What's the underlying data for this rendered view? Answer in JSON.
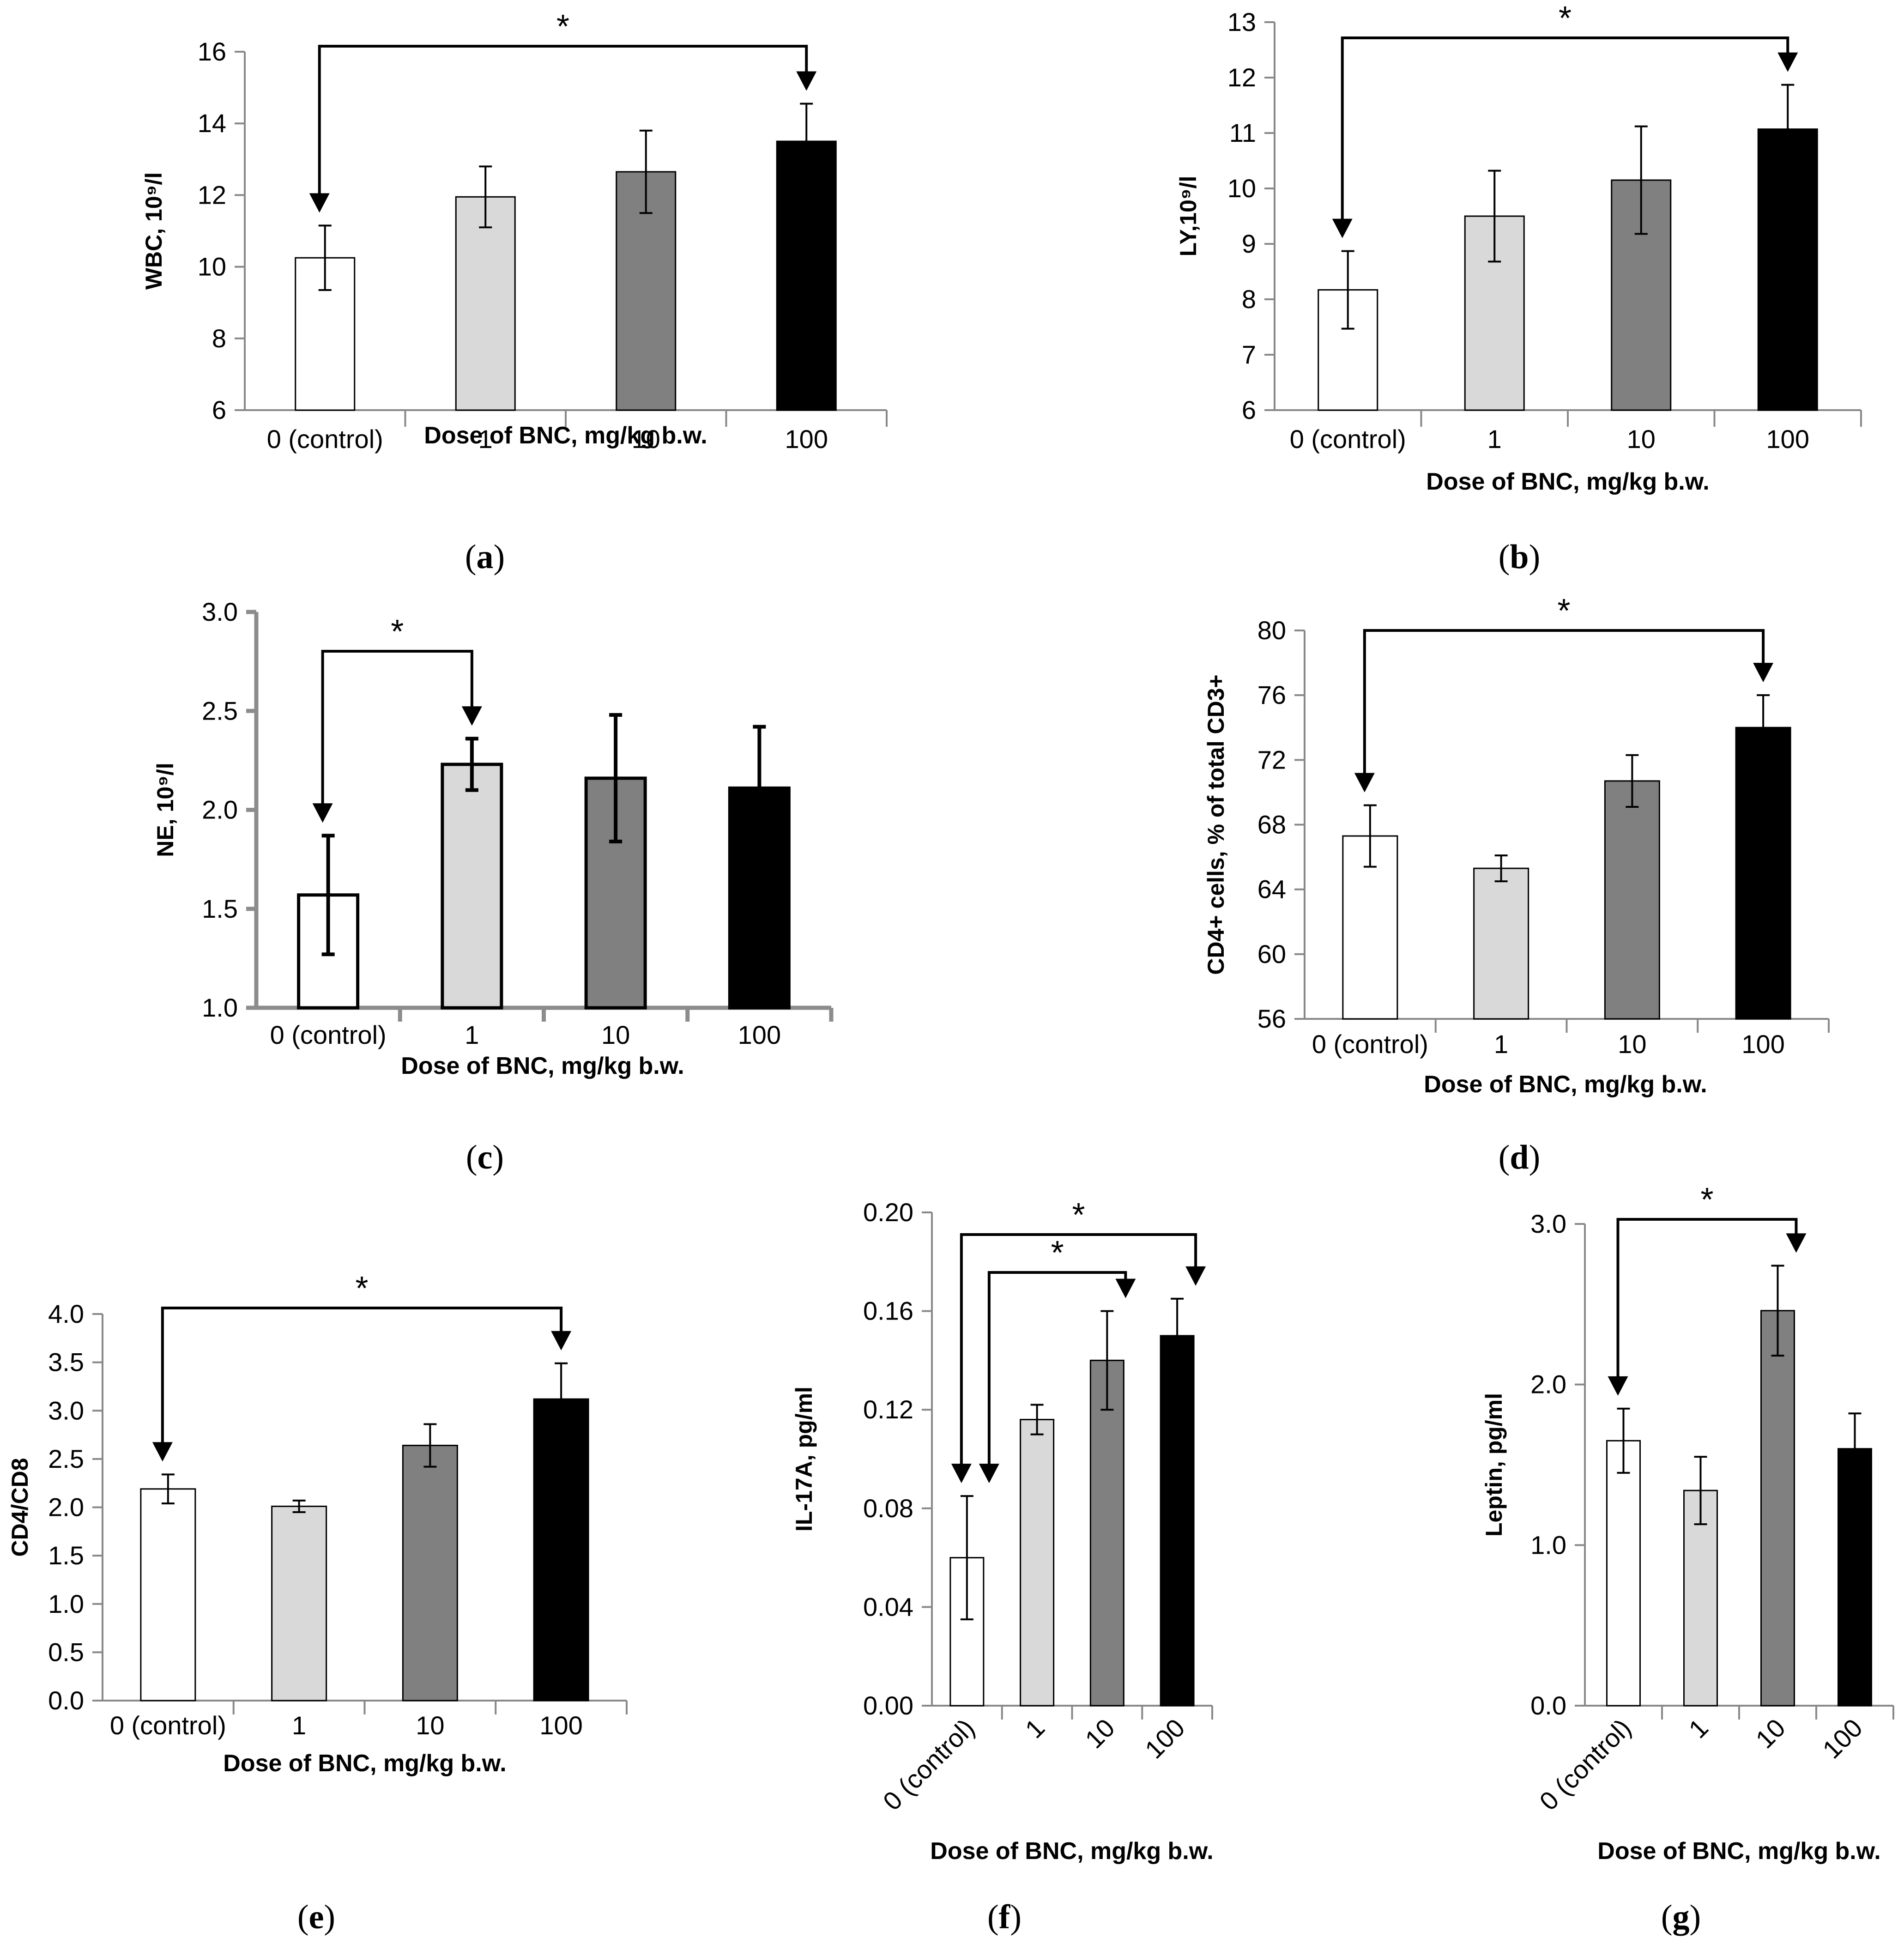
{
  "figure": {
    "xlabel": "Dose of BNC, mg/kg b.w.",
    "categories": [
      "0 (control)",
      "1",
      "10",
      "100"
    ],
    "colors": [
      "#ffffff",
      "#d9d9d9",
      "#808080",
      "#000000"
    ],
    "significance_mark": "*",
    "panel_labels": [
      {
        "open": "(",
        "letter": "a",
        "close": ")"
      },
      {
        "open": "(",
        "letter": "b",
        "close": ")"
      },
      {
        "open": "(",
        "letter": "c",
        "close": ")"
      },
      {
        "open": "(",
        "letter": "d",
        "close": ")"
      },
      {
        "open": "(",
        "letter": "e",
        "close": ")"
      },
      {
        "open": "(",
        "letter": "f",
        "close": ")"
      },
      {
        "open": "(",
        "letter": "g",
        "close": ")"
      }
    ]
  },
  "chart_data": [
    {
      "id": "a",
      "type": "bar",
      "ylabel": "WBC, 10⁹/l",
      "categories": [
        "0 (control)",
        "1",
        "10",
        "100"
      ],
      "values": [
        10.25,
        11.95,
        12.65,
        13.5
      ],
      "errors": [
        0.9,
        0.85,
        1.15,
        1.05
      ],
      "ylim": [
        6,
        16
      ],
      "yticks": [
        6,
        8,
        10,
        12,
        14,
        16
      ],
      "decimals": 0,
      "xlabel": "Dose of BNC, mg/kg b.w.",
      "significance": [
        {
          "from": 0,
          "to": 3,
          "label": "*"
        }
      ]
    },
    {
      "id": "b",
      "type": "bar",
      "ylabel": "LY,10⁹/l",
      "categories": [
        "0 (control)",
        "1",
        "10",
        "100"
      ],
      "values": [
        8.17,
        9.5,
        10.15,
        11.07
      ],
      "errors": [
        0.7,
        0.82,
        0.97,
        0.8
      ],
      "ylim": [
        6,
        13
      ],
      "yticks": [
        6,
        7,
        8,
        9,
        10,
        11,
        12,
        13
      ],
      "decimals": 0,
      "xlabel": "Dose of BNC, mg/kg b.w.",
      "significance": [
        {
          "from": 0,
          "to": 3,
          "label": "*"
        }
      ]
    },
    {
      "id": "c",
      "type": "bar",
      "ylabel": "NE, 10⁹/l",
      "categories": [
        "0 (control)",
        "1",
        "10",
        "100"
      ],
      "values": [
        1.57,
        2.23,
        2.16,
        2.11
      ],
      "errors": [
        0.3,
        0.13,
        0.32,
        0.31
      ],
      "ylim": [
        1.0,
        3.0
      ],
      "yticks": [
        1.0,
        1.5,
        2.0,
        2.5,
        3.0
      ],
      "decimals": 1,
      "xlabel": "Dose of BNC, mg/kg b.w.",
      "significance": [
        {
          "from": 0,
          "to": 1,
          "label": "*"
        }
      ]
    },
    {
      "id": "d",
      "type": "bar",
      "ylabel": "CD4+ cells, % of total CD3+",
      "categories": [
        "0 (control)",
        "1",
        "10",
        "100"
      ],
      "values": [
        67.3,
        65.3,
        70.7,
        74.0
      ],
      "errors": [
        1.9,
        0.8,
        1.6,
        2.0
      ],
      "ylim": [
        56,
        80
      ],
      "yticks": [
        56,
        60,
        64,
        68,
        72,
        76,
        80
      ],
      "decimals": 0,
      "xlabel": "Dose of BNC, mg/kg b.w.",
      "significance": [
        {
          "from": 0,
          "to": 3,
          "label": "*"
        }
      ]
    },
    {
      "id": "e",
      "type": "bar",
      "ylabel": "CD4/CD8",
      "categories": [
        "0 (control)",
        "1",
        "10",
        "100"
      ],
      "values": [
        2.19,
        2.01,
        2.64,
        3.12
      ],
      "errors": [
        0.15,
        0.06,
        0.22,
        0.37
      ],
      "ylim": [
        0.0,
        4.0
      ],
      "yticks": [
        0.0,
        0.5,
        1.0,
        1.5,
        2.0,
        2.5,
        3.0,
        3.5,
        4.0
      ],
      "decimals": 1,
      "xlabel": "Dose of BNC, mg/kg b.w.",
      "significance": [
        {
          "from": 0,
          "to": 3,
          "label": "*"
        }
      ]
    },
    {
      "id": "f",
      "type": "bar",
      "ylabel": "IL-17A, pg/ml",
      "categories": [
        "0 (control)",
        "1",
        "10",
        "100"
      ],
      "values": [
        0.06,
        0.116,
        0.14,
        0.15
      ],
      "errors": [
        0.025,
        0.006,
        0.02,
        0.015
      ],
      "ylim": [
        0.0,
        0.2
      ],
      "yticks": [
        0.0,
        0.04,
        0.08,
        0.12,
        0.16,
        0.2
      ],
      "decimals": 2,
      "xlabel": "Dose of BNC, mg/kg b.w.",
      "significance": [
        {
          "from": 0,
          "to": 3,
          "label": "*"
        },
        {
          "from": 0,
          "to": 2,
          "label": "*"
        }
      ]
    },
    {
      "id": "g",
      "type": "bar",
      "ylabel": "Leptin, pg/ml",
      "categories": [
        "0 (control)",
        "1",
        "10",
        "100"
      ],
      "values": [
        1.65,
        1.34,
        2.46,
        1.6
      ],
      "errors": [
        0.2,
        0.21,
        0.28,
        0.22
      ],
      "ylim": [
        0.0,
        3.0
      ],
      "yticks": [
        0.0,
        1.0,
        2.0,
        3.0
      ],
      "decimals": 1,
      "xlabel": "Dose of BNC, mg/kg b.w.",
      "significance": [
        {
          "from": 0,
          "to": 2,
          "label": "*"
        }
      ]
    }
  ]
}
